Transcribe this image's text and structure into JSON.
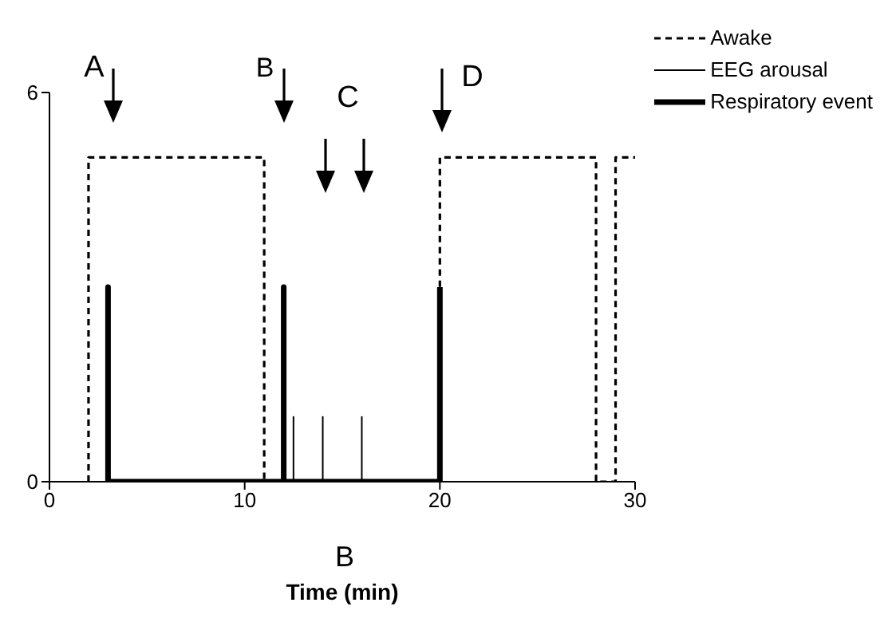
{
  "chart_data": {
    "type": "line",
    "xlabel": "Time (min)",
    "legend": "top right",
    "marker": "none",
    "xlim": [
      0,
      30
    ],
    "xticks": [
      0,
      10,
      20,
      30
    ],
    "ylim": [
      0,
      6
    ],
    "yticks": [
      0,
      6
    ],
    "series": [
      {
        "name": "Awake",
        "color": "#000000",
        "line_style": "dashed",
        "x": [
          2,
          2,
          11,
          11,
          20,
          20,
          28,
          28,
          29,
          29,
          30
        ],
        "values": [
          0,
          5,
          5,
          0,
          0,
          5,
          5,
          0,
          0,
          5,
          5
        ]
      },
      {
        "name": "EEG arousal",
        "color": "#000000",
        "line_style": "solid",
        "x": [
          0,
          12.5,
          12.5,
          12.5,
          14,
          14,
          14,
          16,
          16,
          16,
          30
        ],
        "values": [
          0,
          0,
          1,
          0,
          0,
          1,
          0,
          0,
          1,
          0,
          0
        ]
      },
      {
        "name": "Respiratory event",
        "color": "#000000",
        "line_style": "solid",
        "x": [
          3,
          3,
          3,
          12,
          12,
          12,
          20,
          20
        ],
        "values": [
          0,
          3,
          0,
          0,
          3,
          0,
          0,
          3
        ]
      }
    ],
    "annotations": [
      "A",
      "B",
      "C",
      "D",
      "B"
    ]
  }
}
